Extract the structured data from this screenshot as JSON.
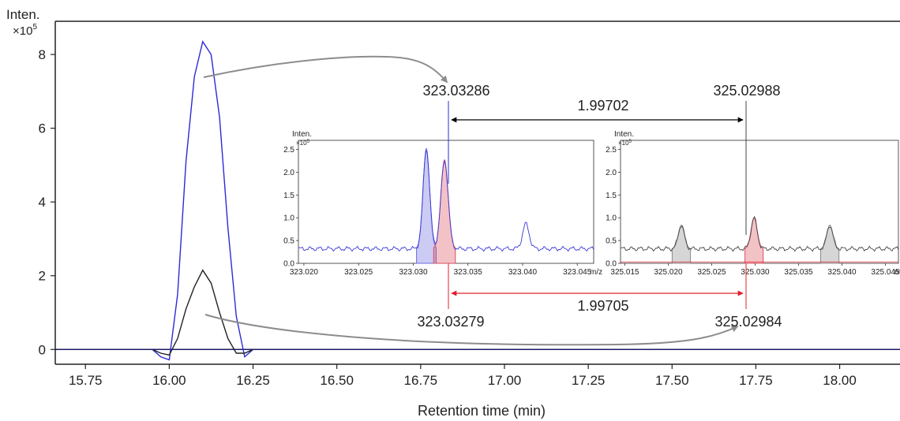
{
  "chart_data": {
    "type": "line",
    "main": {
      "ylabel": "Inten.",
      "yscale_label": "×10",
      "yscale_exp": "5",
      "xlabel": "Retention time (min)",
      "xlim": [
        15.66,
        18.18
      ],
      "ylim": [
        -0.4,
        8.9
      ],
      "xticks": [
        "15.75",
        "16.00",
        "16.25",
        "16.50",
        "16.75",
        "17.00",
        "17.25",
        "17.50",
        "17.75",
        "18.00"
      ],
      "yticks": [
        "0",
        "2",
        "4",
        "6",
        "8"
      ],
      "series": [
        {
          "color": "#2b2bd6",
          "x": [
            15.95,
            15.975,
            16.0,
            16.025,
            16.05,
            16.075,
            16.1,
            16.125,
            16.15,
            16.175,
            16.2,
            16.225,
            16.25
          ],
          "y": [
            0.0,
            -0.2,
            -0.28,
            1.5,
            5.1,
            7.4,
            8.35,
            8.0,
            6.3,
            3.3,
            0.9,
            -0.2,
            0.0
          ]
        },
        {
          "color": "#222222",
          "x": [
            15.95,
            15.975,
            16.0,
            16.025,
            16.05,
            16.075,
            16.1,
            16.125,
            16.15,
            16.175,
            16.2,
            16.225,
            16.25
          ],
          "y": [
            0.0,
            -0.1,
            -0.15,
            0.3,
            1.1,
            1.7,
            2.15,
            1.8,
            1.0,
            0.3,
            -0.1,
            -0.1,
            0.0
          ]
        }
      ]
    },
    "annotations": {
      "top_left_mz": "323.03286",
      "top_right_mz": "325.02988",
      "top_diff": "1.99702",
      "bottom_left_mz": "323.03279",
      "bottom_right_mz": "325.02984",
      "bottom_diff": "1.99705",
      "top_arrow_color": "#000000",
      "bottom_arrow_color": "#e0202a"
    },
    "insets": [
      {
        "ylabel": "Inten.",
        "yscale_label": "×10",
        "yscale_exp": "5",
        "xunit": "m/z",
        "xlim": [
          323.0195,
          323.0465
        ],
        "ylim": [
          0.0,
          2.7
        ],
        "xticks": [
          "323.020",
          "323.025",
          "323.030",
          "323.035",
          "323.040",
          "323.045"
        ],
        "yticks": [
          "0.0",
          "0.5",
          "1.0",
          "1.5",
          "2.0",
          "2.5"
        ],
        "line_color": "#3a3ad8",
        "peaks": [
          {
            "center": 323.0312,
            "height": 2.2,
            "width": 0.0003,
            "color": "#6b6be0"
          },
          {
            "center": 323.03286,
            "height": 1.95,
            "width": 0.00033,
            "color": "#d94f5e"
          },
          {
            "center": 323.0403,
            "height": 0.55,
            "width": 0.0003,
            "color": "#3a3ad8"
          }
        ]
      },
      {
        "ylabel": "Inten.",
        "yscale_label": "×10",
        "yscale_exp": "5",
        "xunit": "m/z",
        "xlim": [
          325.0145,
          325.0465
        ],
        "ylim": [
          0.0,
          2.7
        ],
        "xticks": [
          "325.015",
          "325.020",
          "325.025",
          "325.030",
          "325.035",
          "325.040",
          "325.045"
        ],
        "yticks": [
          "0.0",
          "0.5",
          "1.0",
          "1.5",
          "2.0",
          "2.5"
        ],
        "line_color": "#444444",
        "peaks": [
          {
            "center": 325.0215,
            "height": 0.52,
            "width": 0.00035,
            "color": "#8a8a8a"
          },
          {
            "center": 325.02988,
            "height": 0.68,
            "width": 0.00035,
            "color": "#d94f5e"
          },
          {
            "center": 325.0386,
            "height": 0.52,
            "width": 0.00035,
            "color": "#8a8a8a"
          }
        ]
      }
    ]
  }
}
